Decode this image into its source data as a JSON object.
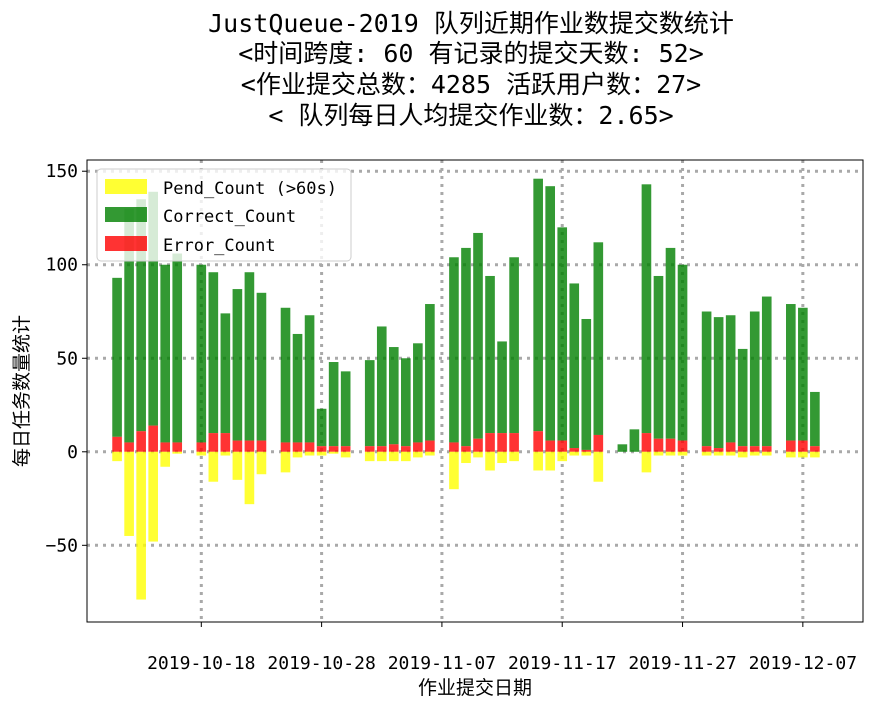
{
  "chart_data": {
    "type": "bar",
    "title_lines": [
      "JustQueue-2019 队列近期作业数提交数统计",
      "<时间跨度: 60  有记录的提交天数: 52>",
      "<作业提交总数：4285 活跃用户数：27>",
      "< 队列每日人均提交作业数：2.65>"
    ],
    "xlabel": "作业提交日期",
    "ylabel": "每日任务数量统计",
    "ylim": [
      -91,
      156
    ],
    "yticks": [
      -50,
      0,
      50,
      100,
      150
    ],
    "ytick_labels": [
      "−50",
      "0",
      "50",
      "100",
      "150"
    ],
    "x_start": "2019-10-11",
    "xlim_days": [
      -2.5,
      62
    ],
    "xticks": [
      7,
      17,
      27,
      37,
      47,
      57
    ],
    "xtick_labels": [
      "2019-10-18",
      "2019-10-28",
      "2019-11-07",
      "2019-11-17",
      "2019-11-27",
      "2019-12-07"
    ],
    "grid": true,
    "legend_position": "upper-left",
    "colors": {
      "pend": "#ffff00",
      "correct": "#008000",
      "error": "#ff0000",
      "grid": "#a9a9a9"
    },
    "series": [
      {
        "name": "Pend_Count (>60s)",
        "key": "pend"
      },
      {
        "name": "Correct_Count",
        "key": "correct"
      },
      {
        "name": "Error_Count",
        "key": "error"
      }
    ],
    "days": [
      0,
      1,
      2,
      3,
      4,
      5,
      6,
      7,
      8,
      9,
      10,
      11,
      12,
      13,
      14,
      15,
      16,
      17,
      18,
      19,
      20,
      21,
      22,
      23,
      24,
      25,
      26,
      27,
      28,
      29,
      30,
      31,
      32,
      33,
      34,
      35,
      36,
      37,
      38,
      39,
      40,
      41,
      42,
      43,
      44,
      45,
      46,
      47,
      48,
      49,
      50,
      51,
      52,
      53,
      54,
      55,
      56,
      57,
      58,
      59
    ],
    "correct": [
      85,
      125,
      124,
      125,
      95,
      101,
      0,
      95,
      86,
      64,
      81,
      90,
      79,
      0,
      72,
      58,
      68,
      20,
      45,
      40,
      0,
      46,
      64,
      52,
      47,
      53,
      73,
      0,
      99,
      106,
      110,
      84,
      49,
      94,
      0,
      135,
      136,
      114,
      88,
      70,
      103,
      0,
      4,
      12,
      133,
      87,
      102,
      94,
      0,
      72,
      70,
      68,
      52,
      72,
      80,
      0,
      73,
      71,
      29,
      0
    ],
    "error": [
      8,
      5,
      11,
      14,
      5,
      5,
      0,
      5,
      10,
      10,
      6,
      6,
      6,
      0,
      5,
      5,
      5,
      3,
      3,
      3,
      0,
      3,
      3,
      4,
      3,
      5,
      6,
      0,
      5,
      3,
      7,
      10,
      10,
      10,
      0,
      11,
      6,
      6,
      2,
      1,
      9,
      0,
      0,
      0,
      10,
      7,
      7,
      6,
      0,
      3,
      2,
      5,
      3,
      3,
      3,
      0,
      6,
      6,
      3,
      0
    ],
    "pend": [
      5,
      45,
      79,
      48,
      8,
      1,
      0,
      2,
      16,
      2,
      15,
      28,
      12,
      0,
      11,
      3,
      2,
      2,
      1,
      3,
      0,
      5,
      5,
      5,
      5,
      3,
      2,
      0,
      20,
      6,
      3,
      10,
      6,
      5,
      0,
      10,
      10,
      5,
      2,
      2,
      16,
      0,
      0,
      0,
      11,
      2,
      2,
      2,
      0,
      2,
      2,
      2,
      3,
      2,
      2,
      0,
      3,
      3,
      3,
      0
    ]
  }
}
